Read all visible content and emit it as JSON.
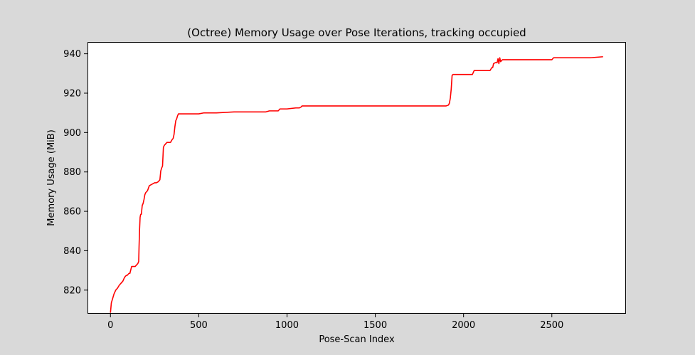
{
  "chart_data": {
    "type": "line",
    "title": "(Octree) Memory Usage over Pose Iterations, tracking occupied",
    "xlabel": "Pose-Scan Index",
    "ylabel": "Memory Usage (MiB)",
    "xlim": [
      -130,
      2920
    ],
    "ylim": [
      808,
      946
    ],
    "xticks": [
      0,
      500,
      1000,
      1500,
      2000,
      2500
    ],
    "yticks": [
      820,
      840,
      860,
      880,
      900,
      920,
      940
    ],
    "grid": false,
    "legend": "none",
    "series": [
      {
        "color": "#ff0000",
        "x": [
          0,
          5,
          10,
          20,
          30,
          40,
          50,
          60,
          70,
          80,
          90,
          95,
          100,
          105,
          110,
          120,
          130,
          140,
          150,
          155,
          160,
          162,
          165,
          168,
          170,
          172,
          175,
          180,
          185,
          190,
          195,
          200,
          210,
          220,
          230,
          240,
          250,
          260,
          270,
          280,
          285,
          290,
          295,
          300,
          305,
          310,
          315,
          320,
          325,
          330,
          340,
          350,
          355,
          360,
          365,
          370,
          375,
          380,
          385,
          390,
          400,
          500,
          530,
          600,
          700,
          800,
          880,
          900,
          950,
          960,
          1000,
          1050,
          1070,
          1080,
          1085,
          1100,
          1500,
          1900,
          1915,
          1920,
          1925,
          1930,
          1935,
          1940,
          1945,
          1950,
          2000,
          2050,
          2055,
          2060,
          2100,
          2150,
          2160,
          2165,
          2170,
          2180,
          2190,
          2195,
          2200,
          2205,
          2210,
          2215,
          2220,
          2230,
          2250,
          2300,
          2400,
          2500,
          2510,
          2600,
          2700,
          2720,
          2790
        ],
        "y": [
          808.5,
          813.5,
          815,
          818,
          820,
          821,
          822.5,
          823.5,
          824.5,
          826.5,
          827.5,
          827.5,
          828,
          828.5,
          828.5,
          832,
          832,
          832,
          833,
          833.5,
          834.5,
          842,
          851,
          857,
          858,
          858.5,
          858.5,
          863,
          864,
          866,
          868.5,
          869.5,
          870.5,
          873,
          873.5,
          874,
          874.5,
          874.5,
          875,
          876,
          880.5,
          882,
          883,
          892.5,
          893.5,
          894,
          894.5,
          895,
          895,
          895,
          895,
          896.5,
          897,
          899,
          903,
          906,
          907,
          908.5,
          909.5,
          909.5,
          909.5,
          909.5,
          910,
          910,
          910.5,
          910.5,
          910.5,
          911,
          911,
          912,
          912,
          912.5,
          912.5,
          913,
          913.5,
          913.5,
          913.5,
          913.5,
          914,
          915,
          917.5,
          922,
          929,
          929.5,
          929.5,
          929.5,
          929.5,
          929.5,
          930.5,
          931.5,
          931.5,
          931.5,
          933,
          933,
          935,
          935.5,
          935.5,
          937.5,
          935,
          938,
          936,
          936.5,
          937,
          937,
          937,
          937,
          937,
          937,
          938,
          938,
          938,
          938,
          938.5
        ]
      }
    ]
  }
}
